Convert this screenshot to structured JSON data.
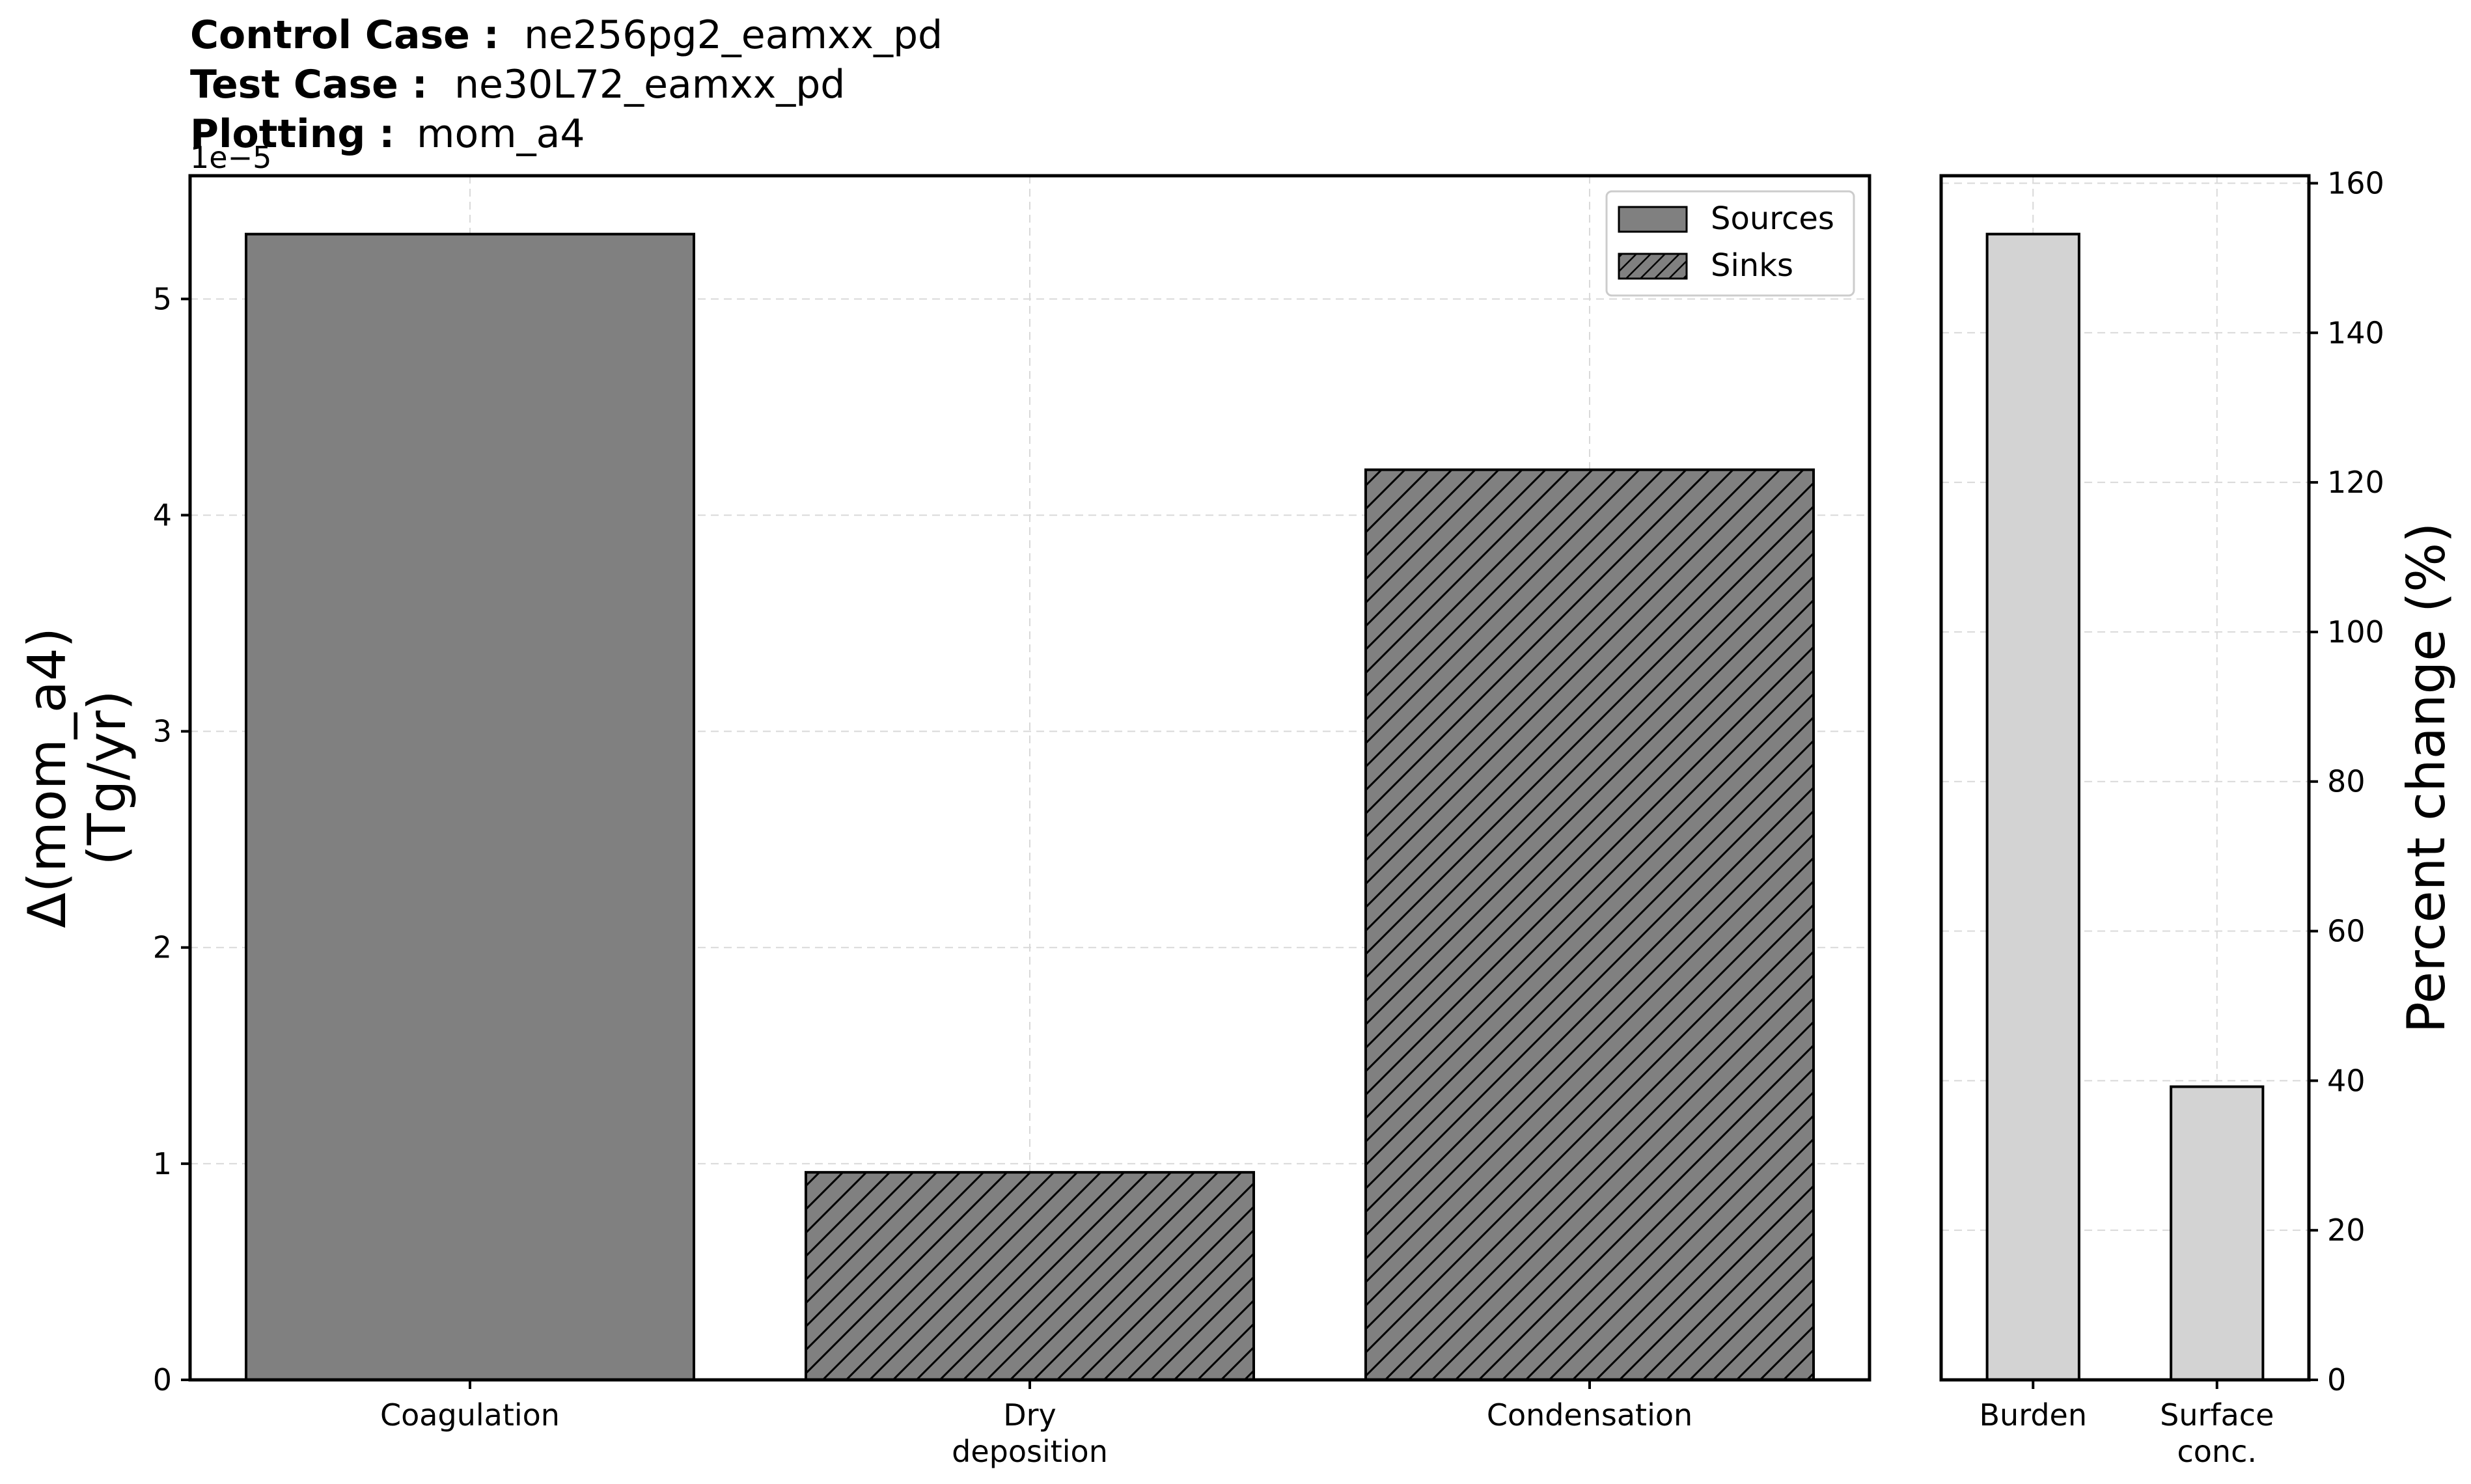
{
  "header": {
    "control_label": "Control Case :",
    "control_value": "ne256pg2_eamxx_pd",
    "test_label": "Test Case :",
    "test_value": "ne30L72_eamxx_pd",
    "plotting_label": "Plotting :",
    "plotting_value": "mom_a4"
  },
  "chart_data": [
    {
      "type": "bar",
      "categories": [
        "Coagulation",
        "Dry\ndeposition",
        "Condensation"
      ],
      "series": [
        {
          "name": "Sources",
          "values": [
            5.3e-05,
            null,
            null
          ],
          "color": "#808080",
          "hatch": "none"
        },
        {
          "name": "Sinks",
          "values": [
            null,
            9.6e-06,
            4.21e-05
          ],
          "color": "#808080",
          "hatch": "diagonal"
        }
      ],
      "ylabel": "Δ(mom_a4)\n(Tg/yr)",
      "xlabel": "",
      "ylim": [
        0,
        5.57e-05
      ],
      "yticks": [
        0,
        1,
        2,
        3,
        4,
        5
      ],
      "ytick_labels": [
        "0",
        "1",
        "2",
        "3",
        "4",
        "5"
      ],
      "offset_text": "1e−5",
      "grid": true,
      "legend": {
        "placement": "top-right",
        "entries": [
          "Sources",
          "Sinks"
        ]
      }
    },
    {
      "type": "bar",
      "categories": [
        "Burden",
        "Surface\nconc."
      ],
      "values": [
        153.2,
        39.2
      ],
      "color": "#d3d3d3",
      "ylabel": "Percent change (%)",
      "ylim": [
        0,
        161
      ],
      "yticks": [
        0,
        20,
        40,
        60,
        80,
        100,
        120,
        140,
        160
      ],
      "ytick_labels": [
        "0",
        "20",
        "40",
        "60",
        "80",
        "100",
        "120",
        "140",
        "160"
      ],
      "yaxis_side": "right",
      "grid": true
    }
  ]
}
